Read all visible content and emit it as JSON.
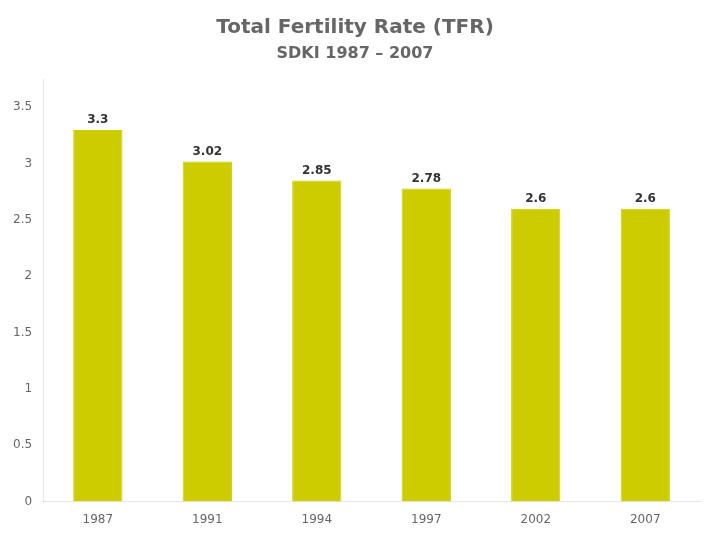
{
  "chart_data": {
    "type": "bar",
    "title": "Total Fertility Rate (TFR)",
    "subtitle": "SDKI 1987 – 2007",
    "categories": [
      "1987",
      "1991",
      "1994",
      "1997",
      "2002",
      "2007"
    ],
    "values": [
      3.3,
      3.02,
      2.85,
      2.78,
      2.6,
      2.6
    ],
    "color": "#CCCC00",
    "ylim": [
      0,
      3.75
    ],
    "yticks": [
      0,
      0.5,
      1,
      1.5,
      2,
      2.5,
      3,
      3.5
    ],
    "grid": false,
    "data_labels": true
  }
}
